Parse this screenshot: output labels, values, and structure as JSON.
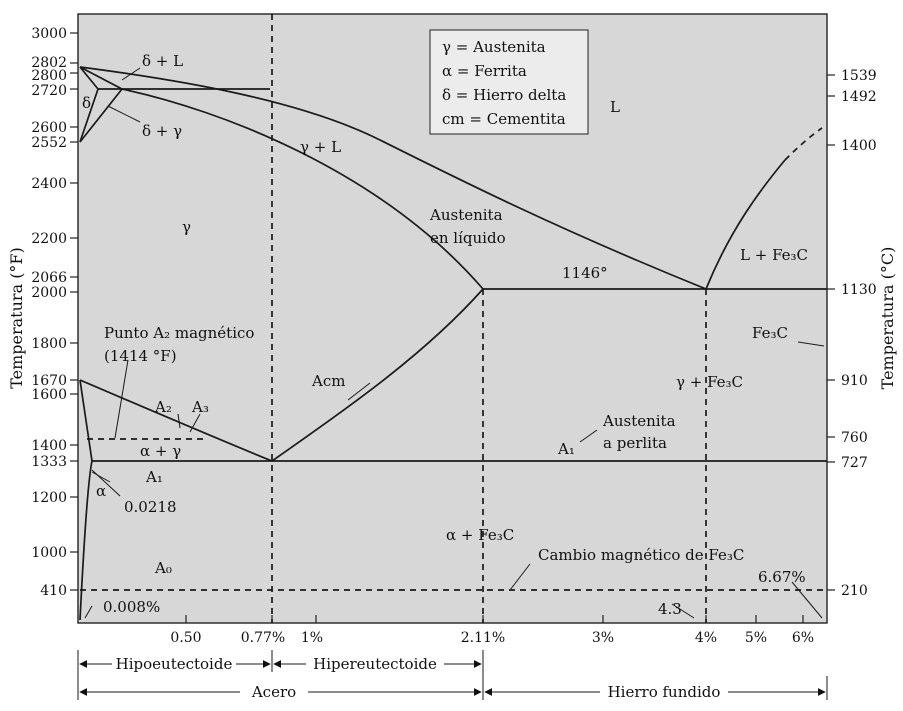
{
  "axes": {
    "left_label": "Temperatura (°F)",
    "right_label": "Temperatura (°C)",
    "left_ticks": [
      "3000",
      "2802",
      "2800",
      "2720",
      "2600",
      "2552",
      "2400",
      "2200",
      "2066",
      "2000",
      "1800",
      "1670",
      "1600",
      "1400",
      "1333",
      "1200",
      "1000",
      "410"
    ],
    "right_ticks": [
      "1539",
      "1492",
      "1400",
      "1130",
      "910",
      "760",
      "727",
      "210"
    ],
    "bottom_ticks": [
      "0.50",
      "0.77%",
      "1%",
      "2.11%",
      "3%",
      "4%",
      "5%",
      "6%"
    ]
  },
  "legend": [
    "γ = Austenita",
    "α = Ferrita",
    "δ = Hierro delta",
    "cm = Cementita"
  ],
  "regions": {
    "delta_liquid": "δ + L",
    "delta": "δ",
    "delta_gamma": "δ + γ",
    "gamma_liquid": "γ + L",
    "liquid": "L",
    "gamma": "γ",
    "austenite_in_liquid_1": "Austenita",
    "austenite_in_liquid_2": "en líquido",
    "eutectic_temp": "1146°",
    "liquid_fe3c": "L + Fe₃C",
    "fe3c": "Fe₃C",
    "magnetic_a2_1": "Punto A₂ magnético",
    "magnetic_a2_2": "(1414 °F)",
    "acm": "Acm",
    "gamma_fe3c": "γ + Fe₃C",
    "a2": "A₂",
    "a3": "A₃",
    "alpha_gamma": "α + γ",
    "a1_left": "A₁",
    "a1_right": "A₁",
    "austenite_pearlite_1": "Austenita",
    "austenite_pearlite_2": "a perlita",
    "alpha": "α",
    "solubility": "0.0218",
    "alpha_fe3c": "α + Fe₃C",
    "fe3c_magnetic": "Cambio magnético de Fe₃C",
    "a0": "A₀",
    "composition_cementite": "6.67%",
    "min_solubility": "0.008%",
    "eutectic_comp": "4.3"
  },
  "bands": {
    "hypo": "Hipoeutectoide",
    "hyper": "Hipereutectoide",
    "steel": "Acero",
    "cast_iron": "Hierro fundido"
  }
}
